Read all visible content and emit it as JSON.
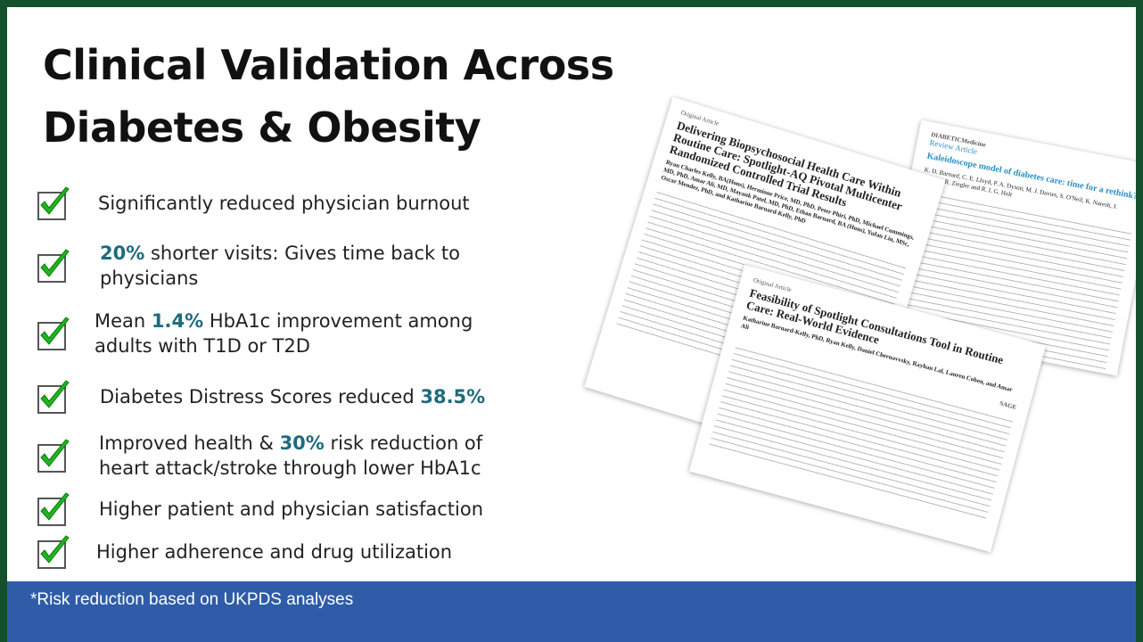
{
  "slide": {
    "title": [
      "Clinical Validation Across",
      "Diabetes & Obesity"
    ],
    "bullets": [
      {
        "parts": [
          {
            "text": "Significantly reduced physician burnout",
            "highlight": false
          }
        ]
      },
      {
        "parts": [
          {
            "text": "20%",
            "highlight": true
          },
          {
            "text": " shorter visits:  Gives time back to physicians",
            "highlight": false
          }
        ]
      },
      {
        "parts": [
          {
            "text": "Mean ",
            "highlight": false
          },
          {
            "text": "1.4%",
            "highlight": true
          },
          {
            "text": " HbA1c improvement among adults with T1D or T2D",
            "highlight": false
          }
        ]
      },
      {
        "parts": [
          {
            "text": "Diabetes Distress Scores reduced ",
            "highlight": false
          },
          {
            "text": "38.5%",
            "highlight": true
          }
        ]
      },
      {
        "parts": [
          {
            "text": "Improved health & ",
            "highlight": false
          },
          {
            "text": "30%",
            "highlight": true
          },
          {
            "text": " risk reduction of heart attack/stroke through lower HbA1c",
            "highlight": false
          }
        ]
      },
      {
        "parts": [
          {
            "text": "Higher patient and physician satisfaction",
            "highlight": false
          }
        ]
      },
      {
        "parts": [
          {
            "text": "Higher adherence and drug utilization",
            "highlight": false
          }
        ]
      }
    ],
    "footnote": "*Risk reduction based on UKPDS analyses",
    "papers": [
      {
        "journal": "DIABETICMedicine",
        "kind": "Review Article",
        "title": "Kaleidoscope model of diabetes care: time for a rethink?",
        "authors": "K. D. Barnard, C. E. Lloyd, P. A. Dyson, M. J. Davies, S. O'Neil, K. Naresh, J. Lawton, R. Ziegler and R. I. G. Holt"
      },
      {
        "kind": "Original Article",
        "title": "Delivering Biopsychosocial Health Care Within Routine Care: Spotlight-AQ Pivotal Multicenter Randomized Controlled Trial Results",
        "authors": "Ryan Charles Kelly, BA(Hons), Hermione Price, MD, PhD, Peter Phiri, PhD, Michael Cummings, MD, PhD, Amar Ali, MD, Mayank Patel, MD, PhD, Ethan Barnard, BA (Hons), Yufan Liu, MSc, Oscar Mendez, PhD, and Katharine Barnard-Kelly, PhD"
      },
      {
        "kind": "Original Article",
        "title": "Feasibility of Spotlight Consultations Tool in Routine Care: Real-World Evidence",
        "authors": "Katharine Barnard-Kelly, PhD, Ryan Kelly, Daniel Chernavvsky, Rayhan Lal, Lauren Cohen, and Amar Ali",
        "publisher": "SAGE"
      }
    ]
  }
}
